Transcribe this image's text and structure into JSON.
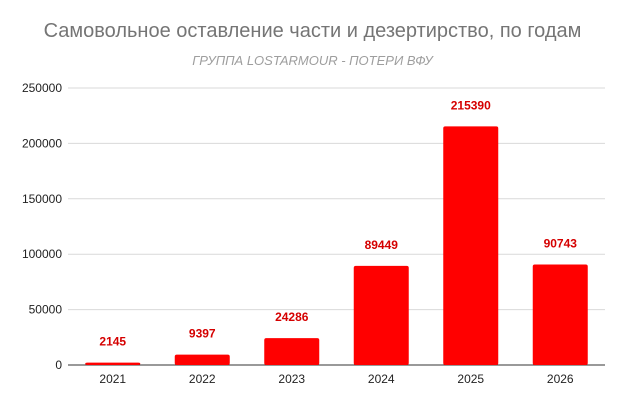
{
  "chart_data": {
    "type": "bar",
    "title": "Самовольное оставление части и дезертирство, по годам",
    "subtitle": "ГРУППА LOSTARMOUR - ПОТЕРИ ВФУ",
    "categories": [
      "2021",
      "2022",
      "2023",
      "2024",
      "2025",
      "2026"
    ],
    "values": [
      2145,
      9397,
      24286,
      89449,
      215390,
      90743
    ],
    "data_labels": [
      "2145",
      "9397",
      "24286",
      "89449",
      "215390",
      "90743"
    ],
    "xlabel": "",
    "ylabel": "",
    "ylim": [
      0,
      250000
    ],
    "yticks": [
      0,
      50000,
      100000,
      150000,
      200000,
      250000
    ],
    "ytick_labels": [
      "0",
      "50000",
      "100000",
      "150000",
      "200000",
      "250000"
    ],
    "grid": true,
    "legend": "none",
    "bar_color": "#ff0000",
    "label_color": "#d50000"
  }
}
